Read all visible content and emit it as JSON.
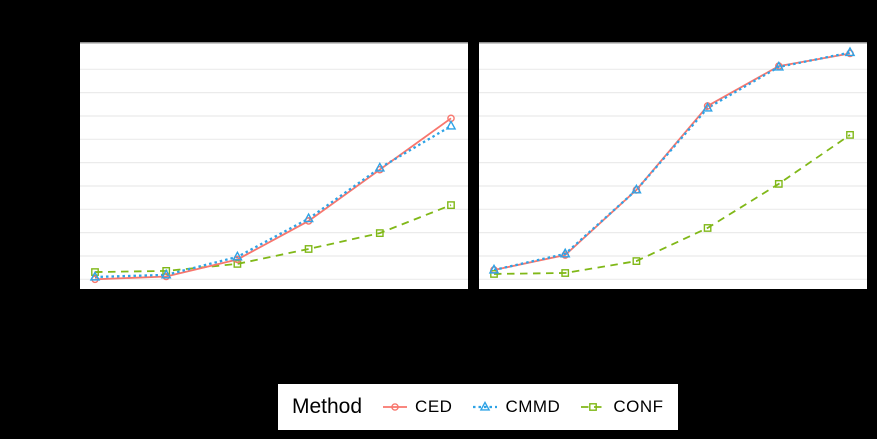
{
  "figure": {
    "background_color": "#000000",
    "panel_color": "#ffffff",
    "gridline_color": "#ebebeb",
    "panel_top_border_color": "#919191"
  },
  "legend": {
    "title": "Method",
    "entries": [
      {
        "label": "CED",
        "color": "#F8766D",
        "marker": "circle",
        "linetype": "solid"
      },
      {
        "label": "CMMD",
        "color": "#2EA3E6",
        "marker": "triangle",
        "linetype": "dotted"
      },
      {
        "label": "CONF",
        "color": "#80B818",
        "marker": "square",
        "linetype": "dashed"
      }
    ]
  },
  "chart_data": [
    {
      "type": "line",
      "panel": "left",
      "title": "",
      "xlabel": "",
      "ylabel": "",
      "x": [
        1,
        2,
        3,
        4,
        5,
        6
      ],
      "x_tick_labels": [],
      "y_tick_labels": [],
      "ylim": [
        0,
        1.05
      ],
      "grid_values": [
        0,
        0.1,
        0.2,
        0.3,
        0.4,
        0.5,
        0.6,
        0.7,
        0.8,
        0.9
      ],
      "grid": "horizontal-only",
      "legend_position": "bottom",
      "series": [
        {
          "name": "CED",
          "color": "#F8766D",
          "linetype": "solid",
          "marker": "circle",
          "values": [
            0.0,
            0.012,
            0.085,
            0.25,
            0.47,
            0.69
          ]
        },
        {
          "name": "CMMD",
          "color": "#2EA3E6",
          "linetype": "dotted",
          "marker": "triangle",
          "values": [
            0.01,
            0.019,
            0.096,
            0.26,
            0.477,
            0.657
          ]
        },
        {
          "name": "CONF",
          "color": "#80B818",
          "linetype": "dashed",
          "marker": "square",
          "values": [
            0.031,
            0.036,
            0.066,
            0.13,
            0.198,
            0.318
          ]
        }
      ]
    },
    {
      "type": "line",
      "panel": "right",
      "title": "",
      "xlabel": "",
      "ylabel": "",
      "x": [
        1,
        2,
        3,
        4,
        5,
        6
      ],
      "x_tick_labels": [],
      "y_tick_labels": [],
      "ylim": [
        0,
        1.05
      ],
      "grid_values": [
        0,
        0.1,
        0.2,
        0.3,
        0.4,
        0.5,
        0.6,
        0.7,
        0.8,
        0.9
      ],
      "grid": "horizontal-only",
      "legend_position": "bottom",
      "series": [
        {
          "name": "CED",
          "color": "#F8766D",
          "linetype": "solid",
          "marker": "circle",
          "values": [
            0.04,
            0.104,
            0.383,
            0.743,
            0.914,
            0.968
          ]
        },
        {
          "name": "CMMD",
          "color": "#2EA3E6",
          "linetype": "dotted",
          "marker": "triangle",
          "values": [
            0.04,
            0.109,
            0.383,
            0.734,
            0.91,
            0.972
          ]
        },
        {
          "name": "CONF",
          "color": "#80B818",
          "linetype": "dashed",
          "marker": "square",
          "values": [
            0.023,
            0.027,
            0.078,
            0.22,
            0.409,
            0.619
          ]
        }
      ]
    }
  ]
}
